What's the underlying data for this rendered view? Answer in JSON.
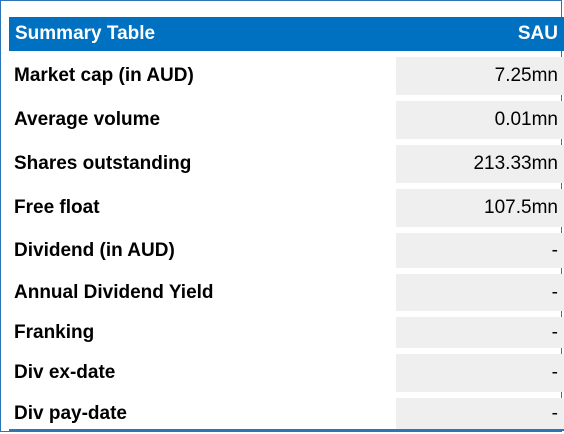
{
  "table": {
    "title": "Summary Table",
    "ticker": "SAU",
    "rows": [
      {
        "label": "Market cap (in AUD)",
        "value": "7.25mn"
      },
      {
        "label": "Average volume",
        "value": "0.01mn"
      },
      {
        "label": "Shares outstanding",
        "value": "213.33mn"
      },
      {
        "label": "Free float",
        "value": "107.5mn"
      },
      {
        "label": "Dividend (in AUD)",
        "value": "-"
      },
      {
        "label": "Annual Dividend Yield",
        "value": "-"
      },
      {
        "label": "Franking",
        "value": "-"
      },
      {
        "label": "Div ex-date",
        "value": "-"
      },
      {
        "label": "Div pay-date",
        "value": "-"
      }
    ]
  },
  "colors": {
    "header_bg": "#0070c0",
    "value_bg": "#efefef",
    "border": "#2e75b6"
  }
}
